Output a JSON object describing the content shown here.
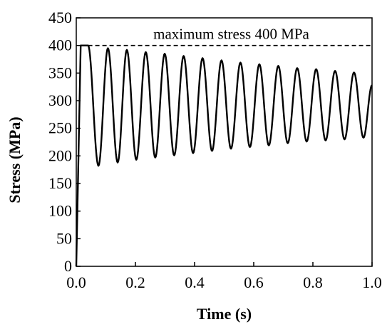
{
  "chart_data": {
    "type": "line",
    "title": "",
    "xlabel": "Time (s)",
    "ylabel": "Stress (MPa)",
    "xlim": [
      0,
      1.0
    ],
    "ylim": [
      0,
      450
    ],
    "x_ticks": [
      0.0,
      0.2,
      0.4,
      0.6,
      0.8,
      1.0
    ],
    "x_tick_labels": [
      "0.0",
      "0.2",
      "0.4",
      "0.6",
      "0.8",
      "1.0"
    ],
    "y_ticks": [
      0,
      50,
      100,
      150,
      200,
      250,
      300,
      350,
      400,
      450
    ],
    "y_tick_labels": [
      "0",
      "50",
      "100",
      "150",
      "200",
      "250",
      "300",
      "350",
      "400",
      "450"
    ],
    "grid": false,
    "legend": "none",
    "line_color": "#000000",
    "reference_line": {
      "y": 400,
      "style": "dashed",
      "label": "maximum  stress  400 MPa"
    },
    "series": [
      {
        "x": [
          0.0,
          0.0075,
          0.015,
          0.04,
          0.075,
          0.107,
          0.14,
          0.171,
          0.203,
          0.235,
          0.267,
          0.299,
          0.331,
          0.363,
          0.395,
          0.427,
          0.459,
          0.491,
          0.523,
          0.555,
          0.587,
          0.619,
          0.651,
          0.683,
          0.715,
          0.747,
          0.779,
          0.811,
          0.843,
          0.875,
          0.907,
          0.939,
          0.971,
          1.0
        ],
        "y": [
          0,
          200,
          400,
          400,
          182,
          395,
          188,
          392,
          193,
          388,
          197,
          385,
          201,
          381,
          205,
          377,
          209,
          373,
          213,
          369,
          216,
          366,
          219,
          363,
          223,
          359,
          226,
          357,
          228,
          354,
          230,
          351,
          233,
          328
        ]
      }
    ]
  }
}
